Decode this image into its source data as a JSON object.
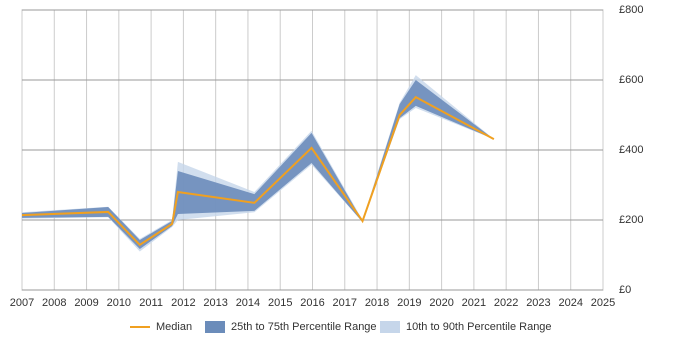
{
  "chart_data": {
    "type": "range-line",
    "x": [
      2007,
      2009.67,
      2010.65,
      2011.65,
      2011.83,
      2014.2,
      2015.97,
      2017.55,
      2018.7,
      2019.2,
      2021.62
    ],
    "series": [
      {
        "name": "Median",
        "color": "#f0a020",
        "values": [
          214,
          223,
          129,
          189,
          280,
          249,
          406,
          197,
          500,
          551,
          431
        ]
      }
    ],
    "bands": [
      {
        "name": "10th to 90th Percentile Range",
        "color": "#c6d6ea",
        "upper": [
          222,
          238,
          146,
          200,
          366,
          280,
          455,
          200,
          535,
          614,
          431
        ],
        "lower": [
          204,
          208,
          110,
          180,
          200,
          222,
          358,
          194,
          488,
          520,
          431
        ]
      },
      {
        "name": "25th to 75th Percentile Range",
        "color": "#6b8cba",
        "upper": [
          220,
          237,
          143,
          197,
          340,
          274,
          449,
          197,
          531,
          600,
          431
        ],
        "lower": [
          206,
          209,
          117,
          183,
          217,
          226,
          363,
          194,
          491,
          526,
          431
        ]
      }
    ],
    "xlim": [
      2007,
      2025
    ],
    "xticks": [
      2007,
      2008,
      2009,
      2010,
      2011,
      2012,
      2013,
      2014,
      2015,
      2016,
      2017,
      2018,
      2019,
      2020,
      2021,
      2022,
      2023,
      2024,
      2025
    ],
    "ylim": [
      0,
      800
    ],
    "yticks": [
      {
        "value": 0,
        "label": "£0"
      },
      {
        "value": 200,
        "label": "£200"
      },
      {
        "value": 400,
        "label": "£400"
      },
      {
        "value": 600,
        "label": "£600"
      },
      {
        "value": 800,
        "label": "£800"
      }
    ],
    "grid": true
  }
}
